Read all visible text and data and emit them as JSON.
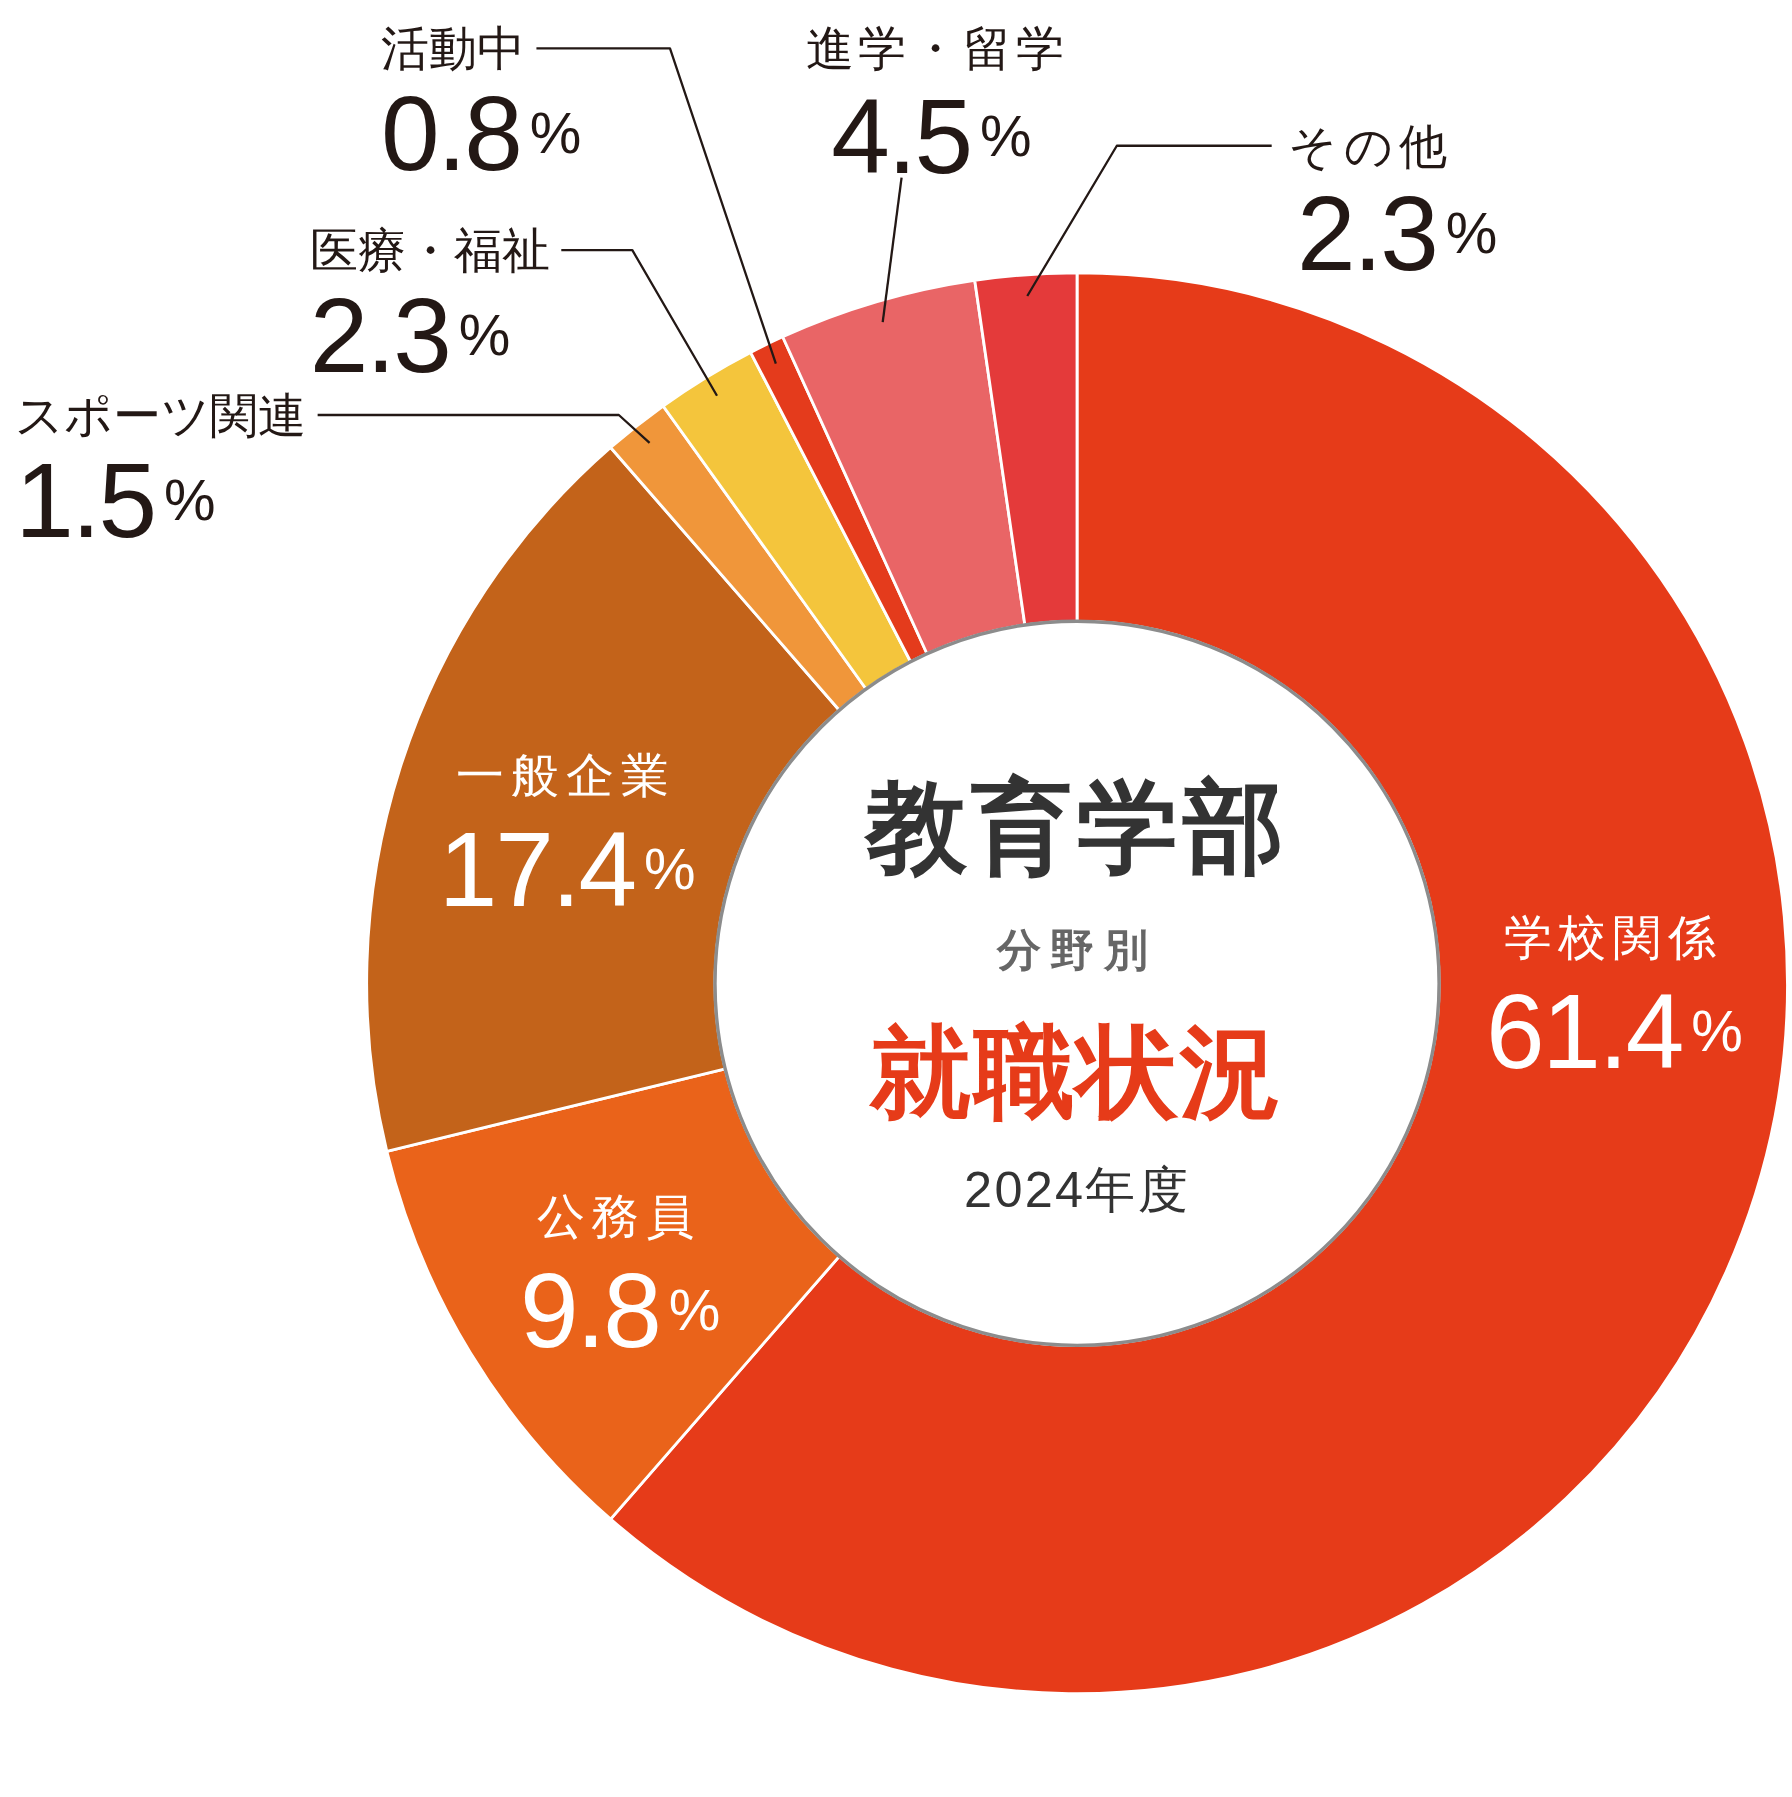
{
  "chart_data": {
    "type": "donut",
    "title": "教育学部",
    "subtitle": "分野別",
    "annotations": [
      "就職状況",
      "2024年度"
    ],
    "categories": [
      "学校関係",
      "公務員",
      "一般企業",
      "スポーツ関連",
      "医療・福祉",
      "活動中",
      "進学・留学",
      "その他"
    ],
    "values": [
      61.4,
      9.8,
      17.4,
      1.5,
      2.3,
      0.8,
      4.5,
      2.3
    ],
    "value_labels": [
      "61.4%",
      "9.8%",
      "17.4%",
      "1.5%",
      "2.3%",
      "0.8%",
      "4.5%",
      "2.3%"
    ],
    "colors": [
      "#e63b19",
      "#ea631a",
      "#c3631a",
      "#f0963a",
      "#f4c53c",
      "#e43b1c",
      "#e96566",
      "#e43a3a"
    ]
  }
}
